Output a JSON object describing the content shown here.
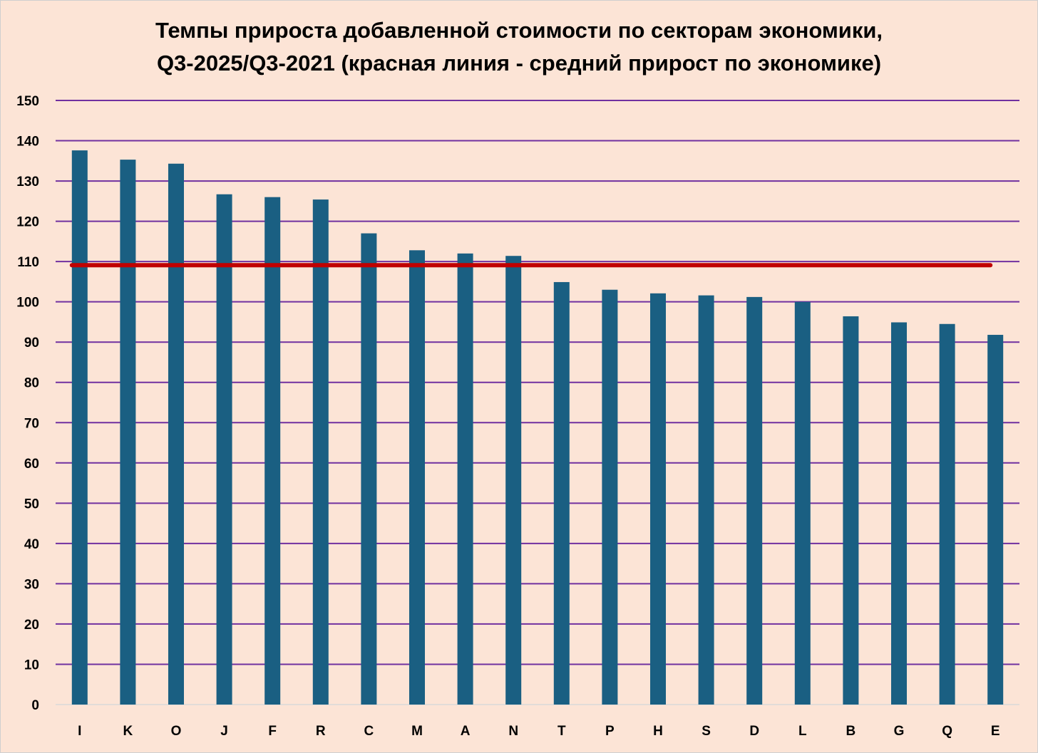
{
  "chart_data": {
    "type": "bar",
    "title": [
      "Темпы прироста добавленной стоимости по секторам экономики,",
      "Q3-2025/Q3-2021 (красная линия - средний прирост по экономике)"
    ],
    "categories": [
      "I",
      "K",
      "O",
      "J",
      "F",
      "R",
      "C",
      "M",
      "A",
      "N",
      "T",
      "P",
      "H",
      "S",
      "D",
      "L",
      "B",
      "G",
      "Q",
      "E"
    ],
    "series": [
      {
        "values": [
          137.6,
          135.3,
          134.3,
          126.7,
          126.0,
          125.4,
          117.0,
          112.8,
          112.0,
          111.4,
          104.9,
          103.0,
          102.1,
          101.6,
          101.2,
          100.0,
          96.4,
          94.9,
          94.5,
          91.8
        ]
      }
    ],
    "reference_line": {
      "value": 109.1
    },
    "yticks": [
      "0",
      "10",
      "20",
      "30",
      "40",
      "50",
      "60",
      "70",
      "80",
      "90",
      "100",
      "110",
      "120",
      "130",
      "140",
      "150"
    ],
    "ylim": [
      0,
      150
    ],
    "grid": true,
    "legend": "none",
    "colors": {
      "background": "#fce4d6",
      "bar": "#1a5f82",
      "gridline": "#7030a0",
      "reference_line": "#c00000"
    }
  }
}
